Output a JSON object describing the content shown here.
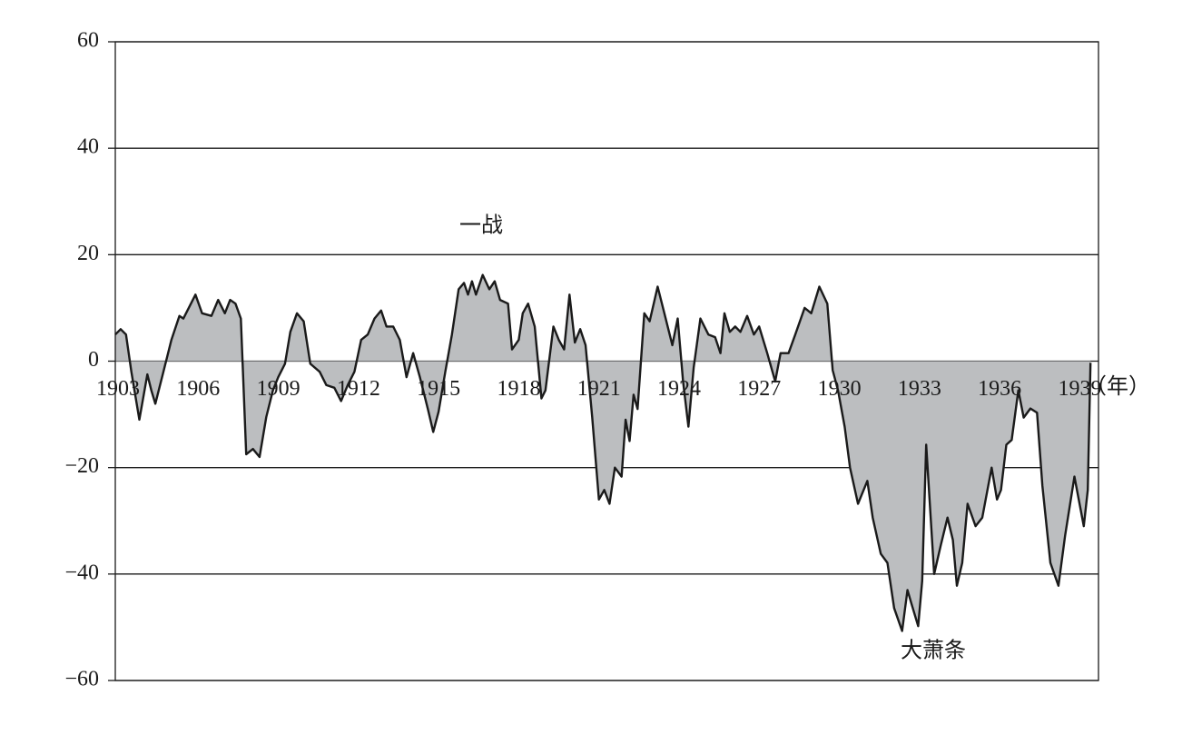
{
  "chart_data": {
    "type": "area",
    "x_label": "（年）",
    "annotations": [
      "一战",
      "大萧条"
    ],
    "line_color": "#1a1a1a",
    "fill_color": "#bcbec0",
    "xlim": [
      1903,
      1939.8
    ],
    "xticks": [
      1903,
      1906,
      1909,
      1912,
      1915,
      1918,
      1921,
      1924,
      1927,
      1930,
      1933,
      1936,
      1939
    ],
    "ylim": [
      -60,
      60
    ],
    "yticks": [
      {
        "value": -60,
        "label": "−60"
      },
      {
        "value": -40,
        "label": "−40"
      },
      {
        "value": -20,
        "label": "−20"
      },
      0,
      20,
      40,
      60
    ],
    "grid": true,
    "x": [
      1903.0,
      1903.2,
      1903.4,
      1903.6,
      1903.9,
      1904.2,
      1904.35,
      1904.5,
      1904.8,
      1905.1,
      1905.4,
      1905.55,
      1905.75,
      1906.0,
      1906.25,
      1906.6,
      1906.85,
      1907.1,
      1907.3,
      1907.5,
      1907.7,
      1907.9,
      1908.15,
      1908.4,
      1908.65,
      1908.9,
      1909.1,
      1909.35,
      1909.55,
      1909.8,
      1910.05,
      1910.3,
      1910.65,
      1910.9,
      1911.2,
      1911.45,
      1911.7,
      1911.95,
      1912.2,
      1912.45,
      1912.7,
      1912.95,
      1913.15,
      1913.4,
      1913.65,
      1913.9,
      1914.15,
      1914.4,
      1914.7,
      1914.9,
      1915.1,
      1915.35,
      1915.6,
      1915.85,
      1916.05,
      1916.2,
      1916.35,
      1916.5,
      1916.75,
      1917.0,
      1917.2,
      1917.4,
      1917.7,
      1917.85,
      1918.1,
      1918.25,
      1918.45,
      1918.7,
      1918.95,
      1919.1,
      1919.4,
      1919.6,
      1919.8,
      1920.0,
      1920.2,
      1920.4,
      1920.6,
      1920.85,
      1921.1,
      1921.3,
      1921.5,
      1921.7,
      1921.95,
      1922.1,
      1922.25,
      1922.4,
      1922.55,
      1922.8,
      1923.0,
      1923.3,
      1923.55,
      1923.85,
      1924.05,
      1924.25,
      1924.45,
      1924.65,
      1924.9,
      1925.2,
      1925.45,
      1925.65,
      1925.8,
      1926.0,
      1926.2,
      1926.4,
      1926.65,
      1926.9,
      1927.1,
      1927.4,
      1927.7,
      1927.9,
      1928.2,
      1928.45,
      1928.8,
      1929.05,
      1929.35,
      1929.65,
      1929.85,
      1930.05,
      1930.3,
      1930.5,
      1930.8,
      1931.15,
      1931.35,
      1931.65,
      1931.9,
      1932.15,
      1932.45,
      1932.65,
      1932.8,
      1933.05,
      1933.2,
      1933.35,
      1933.65,
      1933.9,
      1934.15,
      1934.35,
      1934.5,
      1934.7,
      1934.9,
      1935.2,
      1935.45,
      1935.8,
      1936.0,
      1936.15,
      1936.35,
      1936.55,
      1936.8,
      1937.0,
      1937.25,
      1937.5,
      1937.7,
      1938.0,
      1938.3,
      1938.55,
      1938.9,
      1939.25,
      1939.4,
      1939.5
    ],
    "values": [
      5,
      6,
      5,
      -2,
      -11,
      -2.5,
      -5.5,
      -8,
      -2,
      4,
      8.5,
      8,
      10,
      12.5,
      9,
      8.5,
      11.5,
      9,
      11.5,
      10.8,
      8,
      -17.5,
      -16.5,
      -18,
      -10.5,
      -5.5,
      -3,
      -0.5,
      5.5,
      9,
      7.5,
      -0.5,
      -2,
      -4.5,
      -5,
      -7.5,
      -4.5,
      -2,
      4,
      5,
      8,
      9.5,
      6.5,
      6.5,
      4,
      -3,
      1.5,
      -3,
      -9,
      -13.3,
      -9.5,
      -2,
      5,
      13.5,
      14.7,
      12.5,
      15,
      12.5,
      16.2,
      13.5,
      15,
      11.5,
      10.8,
      2.2,
      4,
      9,
      10.8,
      6.5,
      -7,
      -5.5,
      6.5,
      4,
      2.2,
      12.5,
      3.5,
      6,
      3,
      -10.5,
      -26,
      -24.2,
      -26.8,
      -20,
      -21.7,
      -11,
      -15,
      -6.3,
      -9,
      9,
      7.5,
      14,
      9,
      3,
      8,
      -3.8,
      -12.3,
      -1.2,
      8,
      5,
      4.5,
      1.5,
      9,
      5.5,
      6.5,
      5.5,
      8.5,
      5,
      6.5,
      1.5,
      -3.8,
      1.5,
      1.5,
      5,
      10,
      9,
      14,
      10.8,
      -1.7,
      -5.5,
      -12.3,
      -20,
      -26.8,
      -22.5,
      -29.4,
      -36.2,
      -37.9,
      -46.4,
      -50.7,
      -43,
      -45.6,
      -49.8,
      -41.3,
      -15.7,
      -40,
      -34.5,
      -29.4,
      -33.6,
      -42.2,
      -37.9,
      -26.8,
      -31,
      -29.4,
      -20,
      -26,
      -24.2,
      -15.7,
      -14.8,
      -5.5,
      -10.6,
      -8.9,
      -9.7,
      -23.4,
      -37.9,
      -42.2,
      -32.8,
      -21.7,
      -31,
      -24.2,
      -0.3
    ]
  }
}
